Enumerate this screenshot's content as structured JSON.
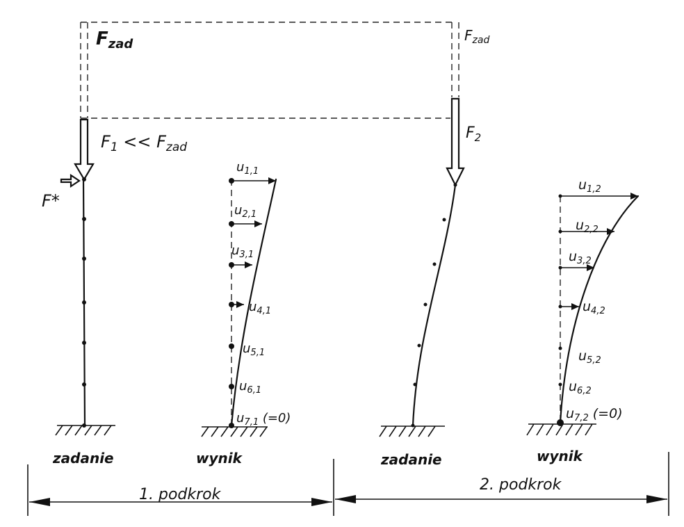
{
  "labels": [
    {
      "parts": [
        {
          "text": "F"
        },
        {
          "sub": "zad"
        }
      ]
    },
    {
      "parts": [
        {
          "text": "F"
        },
        {
          "sub": "zad"
        }
      ]
    },
    {
      "parts": [
        {
          "text": "F"
        },
        {
          "sub": "1"
        },
        {
          "text": " << F"
        },
        {
          "sub": "zad"
        }
      ]
    },
    {
      "parts": [
        {
          "text": "F"
        },
        {
          "sub": "2"
        }
      ]
    },
    {
      "parts": [
        {
          "text": "F*"
        }
      ]
    },
    {
      "parts": [
        {
          "text": "u"
        },
        {
          "sub": "1,1"
        }
      ]
    },
    {
      "parts": [
        {
          "text": "u"
        },
        {
          "sub": "2,1"
        }
      ]
    },
    {
      "parts": [
        {
          "text": "u"
        },
        {
          "sub": "3,1"
        }
      ]
    },
    {
      "parts": [
        {
          "text": "u"
        },
        {
          "sub": "4,1"
        }
      ]
    },
    {
      "parts": [
        {
          "text": "u"
        },
        {
          "sub": "5,1"
        }
      ]
    },
    {
      "parts": [
        {
          "text": "u"
        },
        {
          "sub": "6,1"
        }
      ]
    },
    {
      "parts": [
        {
          "text": "u"
        },
        {
          "sub": "7,1"
        },
        {
          "text": " (=0)"
        }
      ]
    },
    {
      "parts": [
        {
          "text": "u"
        },
        {
          "sub": "1,2"
        }
      ]
    },
    {
      "parts": [
        {
          "text": "u"
        },
        {
          "sub": "2,2"
        }
      ]
    },
    {
      "parts": [
        {
          "text": "u"
        },
        {
          "sub": "3,2"
        }
      ]
    },
    {
      "parts": [
        {
          "text": "u"
        },
        {
          "sub": "4,2"
        }
      ]
    },
    {
      "parts": [
        {
          "text": "u"
        },
        {
          "sub": "5,2"
        }
      ]
    },
    {
      "parts": [
        {
          "text": "u"
        },
        {
          "sub": "6,2"
        }
      ]
    },
    {
      "parts": [
        {
          "text": "u"
        },
        {
          "sub": "7,2"
        },
        {
          "text": " (=0)"
        }
      ]
    },
    {
      "parts": [
        {
          "text": "zadanie"
        }
      ]
    },
    {
      "parts": [
        {
          "text": "wynik"
        }
      ]
    },
    {
      "parts": [
        {
          "text": "zadanie"
        }
      ]
    },
    {
      "parts": [
        {
          "text": "wynik"
        }
      ]
    },
    {
      "parts": [
        {
          "text": "1. podkrok"
        }
      ]
    },
    {
      "parts": [
        {
          "text": "2. podkrok"
        }
      ]
    }
  ]
}
